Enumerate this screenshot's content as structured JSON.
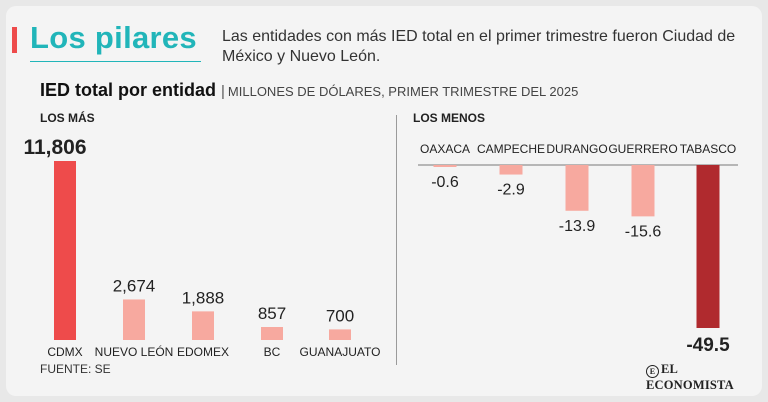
{
  "header": {
    "title": "Los pilares",
    "subtitle": "Las entidades con más IED total en el primer trimestre fueron Ciudad de México y Nuevo León."
  },
  "chart_header": {
    "title": "IED total por entidad",
    "unit": "MILLONES DE DÓLARES, PRIMER TRIMESTRE DEL 2025"
  },
  "footer": {
    "source": "FUENTE: SE",
    "brand": "EL ECONOMISTA"
  },
  "colors": {
    "highlight": "#ee4b4b",
    "light": "#f7a99f",
    "dark": "#b02a2e",
    "accent": "#21b5b9"
  },
  "chart_data": [
    {
      "type": "bar",
      "label": "LOS MÁS",
      "categories": [
        "CDMX",
        "NUEVO LEÓN",
        "EDOMEX",
        "BC",
        "GUANAJUATO"
      ],
      "values": [
        11806,
        2674,
        1888,
        857,
        700
      ],
      "value_labels": [
        "11,806",
        "2,674",
        "1,888",
        "857",
        "700"
      ],
      "highlight": "CDMX",
      "ylim": [
        0,
        11806
      ]
    },
    {
      "type": "bar",
      "label": "LOS MENOS",
      "categories": [
        "OAXACA",
        "CAMPECHE",
        "DURANGO",
        "GUERRERO",
        "TABASCO"
      ],
      "values": [
        -0.6,
        -2.9,
        -13.9,
        -15.6,
        -49.5
      ],
      "value_labels": [
        "-0.6",
        "-2.9",
        "-13.9",
        "-15.6",
        "-49.5"
      ],
      "highlight": "TABASCO",
      "ylim": [
        -49.5,
        0
      ]
    }
  ]
}
